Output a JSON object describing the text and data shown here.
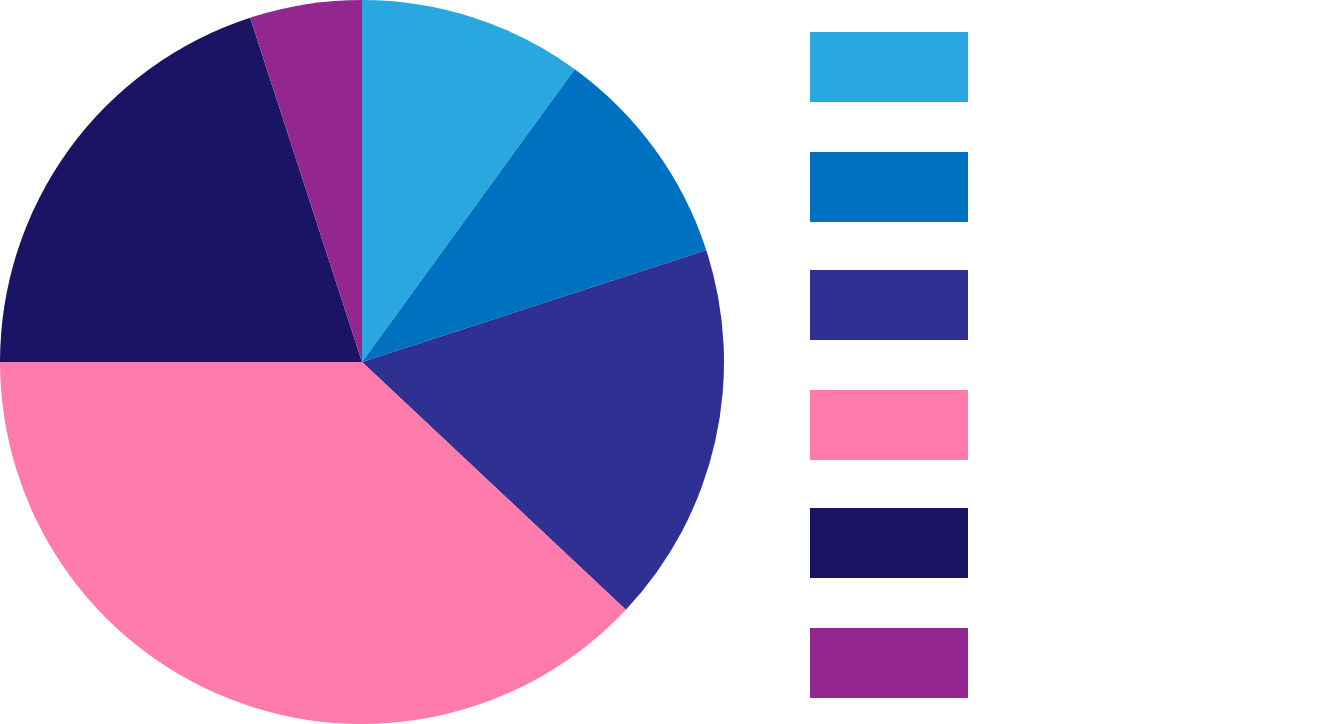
{
  "chart_data": {
    "type": "pie",
    "categories": [
      null,
      null,
      null,
      null,
      null,
      null
    ],
    "values": [
      10,
      10,
      17,
      38,
      20,
      5
    ],
    "colors": [
      "#29a8e0",
      "#0070c0",
      "#2e3192",
      "#ff7bac",
      "#1b1464",
      "#93278f"
    ]
  }
}
